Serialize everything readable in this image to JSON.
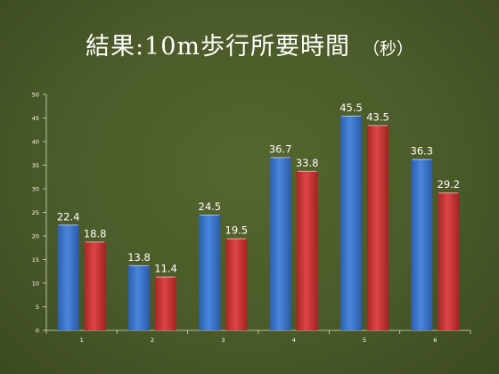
{
  "slide": {
    "title": "結果:10m歩行所要時間",
    "title_suffix": "（秒）"
  },
  "colors": {
    "background": "#4a5a29",
    "series_blue": "#3a72c8",
    "series_red": "#c83232",
    "text": "#ffffff",
    "axis": "#d8ddc8"
  },
  "chart_data": {
    "type": "bar",
    "title": "結果:10m歩行所要時間 （秒）",
    "categories": [
      "1",
      "2",
      "3",
      "4",
      "5",
      "6"
    ],
    "series": [
      {
        "color": "#3a72c8",
        "values": [
          22.4,
          13.8,
          24.5,
          36.7,
          45.5,
          36.3
        ]
      },
      {
        "color": "#c83232",
        "values": [
          18.8,
          11.4,
          19.5,
          33.8,
          43.5,
          29.2
        ]
      }
    ],
    "ylim": [
      0,
      50
    ],
    "yticks": [
      0,
      5,
      10,
      15,
      20,
      25,
      30,
      35,
      40,
      45,
      50
    ],
    "xlabel": "",
    "ylabel": "",
    "grid": false,
    "legend": "none",
    "data_labels": true
  }
}
